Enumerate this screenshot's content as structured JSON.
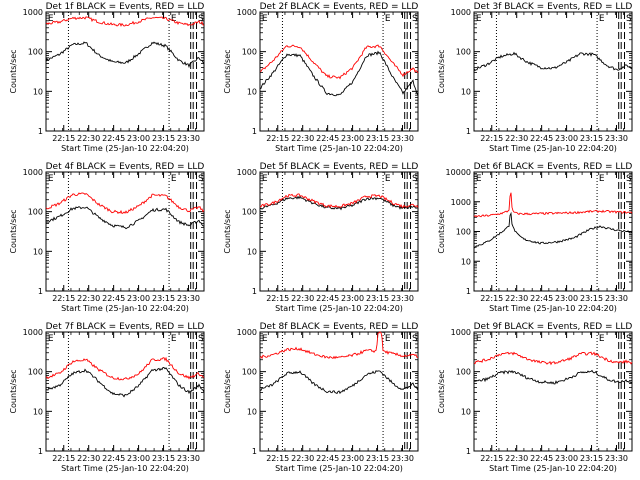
{
  "figure": {
    "shared_xlabel": "Start Time (25-Jan-10 22:04:20)",
    "shared_ylabel": "Counts/sec",
    "x_ticks": [
      "22:15",
      "22:30",
      "22:45",
      "23:00",
      "23:15",
      "23:30"
    ],
    "tick_times_min": [
      10.67,
      25.67,
      40.67,
      55.67,
      70.67,
      85.67
    ],
    "x_range_min": [
      0,
      95
    ],
    "annotations": {
      "e": "E",
      "s": "S"
    },
    "marker_times_min": {
      "dotted": [
        13.5,
        74.0
      ],
      "dashed": [
        87.0,
        88.5,
        90.5
      ]
    },
    "colors": {
      "events": "#000000",
      "lld": "#ff0000"
    }
  },
  "chart_data": [
    {
      "type": "line",
      "title": "Det 1f BLACK = Events, RED = LLD",
      "y_scale": "log",
      "ylim": [
        1,
        1000
      ],
      "y_ticks": [
        "1",
        "10",
        "100",
        "1000"
      ],
      "series": [
        {
          "name": "Events",
          "color": "#000000",
          "x_min": [
            0,
            8,
            16,
            24,
            32,
            40,
            48,
            56,
            64,
            72,
            80,
            86,
            92,
            95
          ],
          "y": [
            60,
            85,
            150,
            165,
            80,
            55,
            52,
            90,
            170,
            140,
            60,
            45,
            70,
            50
          ]
        },
        {
          "name": "LLD",
          "color": "#ff0000",
          "x_min": [
            0,
            8,
            16,
            24,
            32,
            40,
            48,
            56,
            64,
            72,
            80,
            86,
            92,
            95
          ],
          "y": [
            500,
            560,
            700,
            720,
            560,
            480,
            470,
            580,
            720,
            680,
            520,
            470,
            560,
            500
          ]
        }
      ]
    },
    {
      "type": "line",
      "title": "Det 2f BLACK = Events, RED = LLD",
      "y_scale": "log",
      "ylim": [
        1,
        1000
      ],
      "y_ticks": [
        "1",
        "10",
        "100",
        "1000"
      ],
      "series": [
        {
          "name": "Events",
          "color": "#000000",
          "x_min": [
            0,
            8,
            16,
            24,
            32,
            40,
            48,
            56,
            64,
            72,
            80,
            86,
            92,
            95
          ],
          "y": [
            12,
            30,
            85,
            80,
            25,
            9,
            8,
            18,
            80,
            95,
            22,
            9,
            18,
            8
          ]
        },
        {
          "name": "LLD",
          "color": "#ff0000",
          "x_min": [
            0,
            8,
            16,
            24,
            32,
            40,
            48,
            56,
            64,
            72,
            80,
            86,
            92,
            95
          ],
          "y": [
            30,
            60,
            140,
            135,
            55,
            24,
            22,
            40,
            130,
            140,
            50,
            26,
            38,
            28
          ]
        }
      ]
    },
    {
      "type": "line",
      "title": "Det 3f BLACK = Events, RED = LLD",
      "y_scale": "log",
      "ylim": [
        1,
        1000
      ],
      "y_ticks": [
        "1",
        "10",
        "100",
        "1000"
      ],
      "series": [
        {
          "name": "Events",
          "color": "#000000",
          "x_min": [
            0,
            8,
            16,
            24,
            32,
            40,
            48,
            56,
            64,
            72,
            80,
            86,
            92,
            95
          ],
          "y": [
            35,
            48,
            75,
            90,
            55,
            40,
            38,
            55,
            90,
            85,
            45,
            35,
            45,
            38
          ]
        }
      ]
    },
    {
      "type": "line",
      "title": "Det 4f BLACK = Events, RED = LLD",
      "y_scale": "log",
      "ylim": [
        1,
        1000
      ],
      "y_ticks": [
        "1",
        "10",
        "100",
        "1000"
      ],
      "series": [
        {
          "name": "Events",
          "color": "#000000",
          "x_min": [
            0,
            8,
            16,
            24,
            32,
            40,
            48,
            56,
            64,
            72,
            80,
            86,
            92,
            95
          ],
          "y": [
            55,
            75,
            120,
            130,
            70,
            45,
            40,
            60,
            110,
            115,
            55,
            45,
            60,
            42
          ]
        },
        {
          "name": "LLD",
          "color": "#ff0000",
          "x_min": [
            0,
            8,
            16,
            24,
            32,
            40,
            48,
            56,
            64,
            72,
            80,
            86,
            92,
            95
          ],
          "y": [
            120,
            160,
            270,
            280,
            150,
            100,
            95,
            140,
            260,
            250,
            130,
            105,
            130,
            100
          ]
        }
      ]
    },
    {
      "type": "line",
      "title": "Det 5f BLACK = Events, RED = LLD",
      "y_scale": "log",
      "ylim": [
        1,
        1000
      ],
      "y_ticks": [
        "1",
        "10",
        "100",
        "1000"
      ],
      "series": [
        {
          "name": "Events",
          "color": "#000000",
          "x_min": [
            0,
            8,
            16,
            24,
            32,
            40,
            48,
            56,
            64,
            72,
            80,
            86,
            92,
            95
          ],
          "y": [
            120,
            150,
            215,
            230,
            165,
            125,
            120,
            145,
            215,
            220,
            145,
            120,
            135,
            120
          ]
        },
        {
          "name": "LLD",
          "color": "#ff0000",
          "x_min": [
            0,
            8,
            16,
            24,
            32,
            40,
            48,
            56,
            64,
            72,
            80,
            86,
            92,
            95
          ],
          "y": [
            135,
            165,
            250,
            260,
            185,
            140,
            135,
            165,
            245,
            250,
            165,
            135,
            150,
            135
          ]
        }
      ]
    },
    {
      "type": "line",
      "title": "Det 6f BLACK = Events, RED = LLD",
      "y_scale": "log",
      "ylim": [
        1,
        10000
      ],
      "y_ticks": [
        "1",
        "10",
        "100",
        "1000",
        "10000"
      ],
      "series": [
        {
          "name": "Events",
          "color": "#000000",
          "x_min": [
            0,
            8,
            14,
            18,
            21,
            22,
            23,
            26,
            30,
            40,
            50,
            60,
            70,
            76,
            80,
            86,
            92,
            95
          ],
          "y": [
            30,
            45,
            75,
            110,
            150,
            600,
            150,
            80,
            55,
            40,
            45,
            60,
            120,
            150,
            130,
            110,
            100,
            90
          ]
        },
        {
          "name": "LLD",
          "color": "#ff0000",
          "x_min": [
            0,
            8,
            14,
            18,
            21,
            22,
            23,
            26,
            30,
            40,
            50,
            60,
            70,
            76,
            80,
            86,
            92,
            95
          ],
          "y": [
            320,
            340,
            380,
            430,
            500,
            3000,
            480,
            400,
            390,
            400,
            410,
            430,
            470,
            480,
            470,
            450,
            440,
            430
          ]
        }
      ]
    },
    {
      "type": "line",
      "title": "Det 7f BLACK = Events, RED = LLD",
      "y_scale": "log",
      "ylim": [
        1,
        1000
      ],
      "y_ticks": [
        "1",
        "10",
        "100",
        "1000"
      ],
      "series": [
        {
          "name": "Events",
          "color": "#000000",
          "x_min": [
            0,
            8,
            16,
            24,
            32,
            40,
            48,
            56,
            64,
            72,
            80,
            86,
            92,
            95
          ],
          "y": [
            35,
            45,
            90,
            110,
            55,
            28,
            25,
            45,
            110,
            120,
            45,
            30,
            45,
            32
          ]
        },
        {
          "name": "LLD",
          "color": "#ff0000",
          "x_min": [
            0,
            8,
            16,
            24,
            32,
            40,
            48,
            56,
            64,
            72,
            80,
            86,
            92,
            95
          ],
          "y": [
            70,
            90,
            180,
            200,
            110,
            70,
            65,
            90,
            200,
            210,
            90,
            70,
            90,
            70
          ]
        }
      ]
    },
    {
      "type": "line",
      "title": "Det 8f BLACK = Events, RED = LLD",
      "y_scale": "log",
      "ylim": [
        1,
        1000
      ],
      "y_ticks": [
        "1",
        "10",
        "100",
        "1000"
      ],
      "series": [
        {
          "name": "Events",
          "color": "#000000",
          "x_min": [
            0,
            8,
            16,
            24,
            32,
            40,
            48,
            56,
            64,
            72,
            80,
            86,
            92,
            95
          ],
          "y": [
            35,
            48,
            90,
            100,
            50,
            32,
            30,
            45,
            85,
            105,
            50,
            35,
            48,
            35
          ]
        },
        {
          "name": "LLD",
          "color": "#ff0000",
          "x_min": [
            0,
            8,
            16,
            24,
            32,
            40,
            48,
            56,
            64,
            70,
            71,
            73,
            74,
            80,
            86,
            92,
            95
          ],
          "y": [
            230,
            270,
            360,
            380,
            280,
            230,
            225,
            260,
            340,
            330,
            1000,
            1000,
            330,
            280,
            250,
            260,
            240
          ]
        }
      ]
    },
    {
      "type": "line",
      "title": "Det 9f BLACK = Events, RED = LLD",
      "y_scale": "log",
      "ylim": [
        1,
        1000
      ],
      "y_ticks": [
        "1",
        "10",
        "100",
        "1000"
      ],
      "series": [
        {
          "name": "Events",
          "color": "#000000",
          "x_min": [
            0,
            8,
            16,
            24,
            32,
            40,
            48,
            56,
            64,
            72,
            80,
            86,
            92,
            95
          ],
          "y": [
            55,
            65,
            95,
            100,
            70,
            55,
            52,
            65,
            95,
            100,
            65,
            55,
            60,
            55
          ]
        },
        {
          "name": "LLD",
          "color": "#ff0000",
          "x_min": [
            0,
            8,
            16,
            24,
            32,
            40,
            48,
            56,
            64,
            72,
            80,
            86,
            92,
            95
          ],
          "y": [
            170,
            200,
            280,
            290,
            210,
            170,
            165,
            200,
            280,
            290,
            200,
            170,
            180,
            165
          ]
        }
      ]
    }
  ]
}
